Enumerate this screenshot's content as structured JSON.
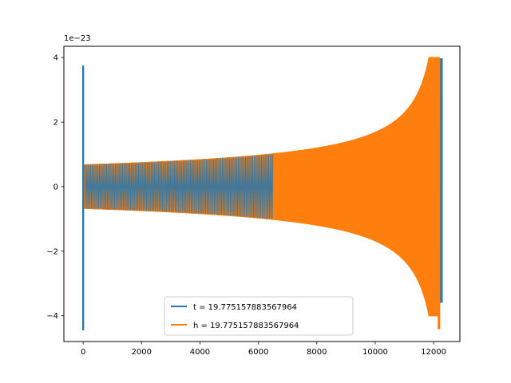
{
  "chart_data": {
    "type": "line",
    "title": "",
    "xlabel": "",
    "ylabel": "",
    "y_scale_label": "1e−23",
    "xlim": [
      -660,
      12900
    ],
    "ylim": [
      -4.8,
      4.35
    ],
    "xticks": [
      0,
      2000,
      4000,
      6000,
      8000,
      10000,
      12000
    ],
    "yticks": [
      -4,
      -2,
      0,
      2,
      4
    ],
    "ytick_labels": [
      "−4",
      "−2",
      "0",
      "2",
      "4"
    ],
    "grid": false,
    "legend_position": "bottom-center",
    "series": [
      {
        "name": "t = 19.775157883567964",
        "color": "#1f77b4",
        "kind": "chirp",
        "x_range": [
          0,
          12280
        ],
        "amplitude_start": 0.67,
        "amplitude_end": 3.5,
        "start_spike": [
          3.75,
          -4.45
        ],
        "end_spike": [
          3.98,
          -3.6
        ],
        "dense_until": 6500
      },
      {
        "name": "h = 19.775157883567964",
        "color": "#ff7f0e",
        "kind": "chirp",
        "x_range": [
          0,
          12200
        ],
        "amplitude_start": 0.67,
        "amplitude_end": 4.0,
        "end_spike": [
          3.98,
          -4.42
        ]
      }
    ]
  }
}
